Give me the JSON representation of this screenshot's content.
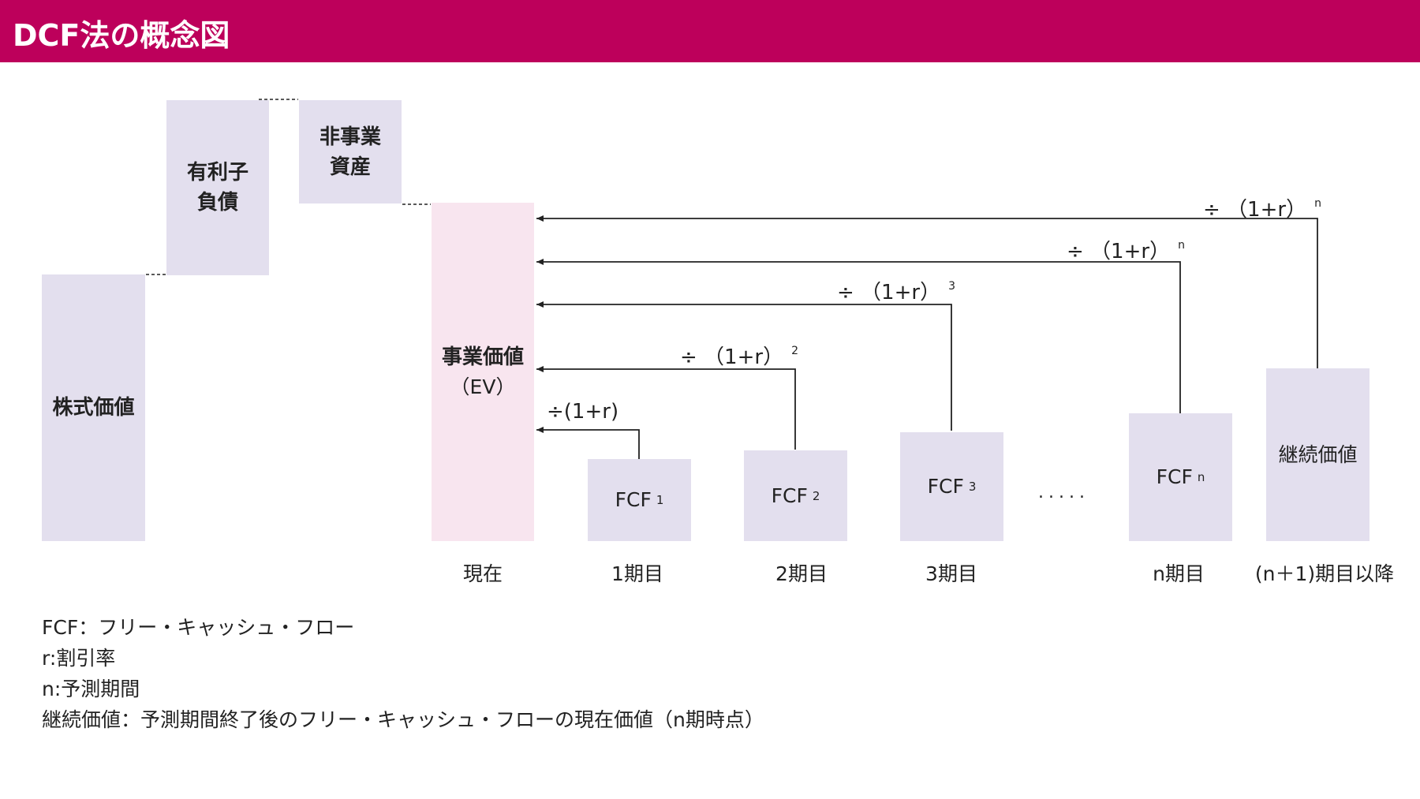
{
  "title": "DCF法の概念図",
  "colors": {
    "header": "#bd005b",
    "box": "#e3dfee",
    "ev_box": "#f8e5ef"
  },
  "bars": {
    "equity": "株式価値",
    "debt": "有利子\n負債",
    "non_operating": "非事業\n資産",
    "ev_name": "事業価値",
    "ev_abbr": "（EV）"
  },
  "fcf": [
    {
      "label": "FCF",
      "sub": "1"
    },
    {
      "label": "FCF",
      "sub": "2"
    },
    {
      "label": "FCF",
      "sub": "3"
    },
    {
      "label": "FCF",
      "sub": "n"
    }
  ],
  "terminal": "継続価値",
  "ellipsis": ".....",
  "periods": [
    "現在",
    "1期目",
    "2期目",
    "3期目",
    "n期目",
    "(n＋1)期目以降"
  ],
  "discounts": [
    {
      "text": "÷(1+r)",
      "sup": ""
    },
    {
      "text": "÷ （1+r）",
      "sup": "2"
    },
    {
      "text": "÷ （1+r）",
      "sup": "3"
    },
    {
      "text": "÷ （1+r）",
      "sup": "n"
    },
    {
      "text": "÷ （1+r）",
      "sup": "n"
    }
  ],
  "legend": [
    "FCF：フリー・キャッシュ・フロー",
    "r:割引率",
    "n:予測期間",
    "継続価値：予測期間終了後のフリー・キャッシュ・フローの現在価値（n期時点）"
  ]
}
